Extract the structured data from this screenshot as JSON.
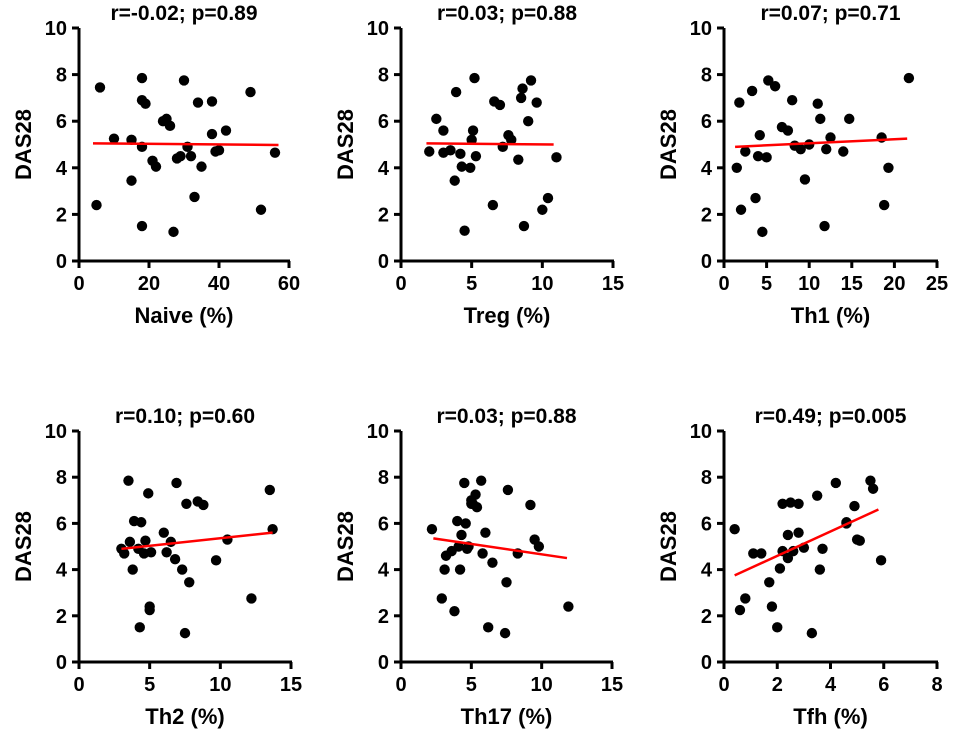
{
  "figure": {
    "point_color": "#000000",
    "fit_line_color": "#ff0000",
    "axis_color": "#000000"
  },
  "chart_data": [
    {
      "type": "scatter",
      "title": "r=-0.02; p=0.89",
      "xlabel": "Naive (%)",
      "ylabel": "DAS28",
      "xlim": [
        0,
        60
      ],
      "ylim": [
        0,
        10
      ],
      "xticks": [
        0,
        20,
        40,
        60
      ],
      "yticks": [
        0,
        2,
        4,
        6,
        8,
        10
      ],
      "fit_line": {
        "x": [
          4,
          57
        ],
        "y": [
          5.05,
          4.98
        ]
      },
      "points": [
        [
          5,
          2.4
        ],
        [
          6,
          7.45
        ],
        [
          10,
          5.25
        ],
        [
          15,
          5.2
        ],
        [
          15,
          3.45
        ],
        [
          18,
          7.85
        ],
        [
          18,
          6.9
        ],
        [
          19,
          6.75
        ],
        [
          18,
          4.9
        ],
        [
          18,
          1.5
        ],
        [
          21,
          4.3
        ],
        [
          22,
          4.05
        ],
        [
          24,
          6.0
        ],
        [
          25,
          6.1
        ],
        [
          26,
          5.8
        ],
        [
          27,
          1.25
        ],
        [
          28,
          4.4
        ],
        [
          29,
          4.5
        ],
        [
          30,
          7.75
        ],
        [
          31,
          4.9
        ],
        [
          32,
          4.5
        ],
        [
          33,
          2.75
        ],
        [
          34,
          6.8
        ],
        [
          35,
          4.05
        ],
        [
          38,
          6.85
        ],
        [
          38,
          5.45
        ],
        [
          39,
          4.7
        ],
        [
          40,
          4.75
        ],
        [
          42,
          5.6
        ],
        [
          49,
          7.25
        ],
        [
          52,
          2.2
        ],
        [
          56,
          4.65
        ]
      ]
    },
    {
      "type": "scatter",
      "title": "r=0.03; p=0.88",
      "xlabel": "Treg (%)",
      "ylabel": "DAS28",
      "xlim": [
        0,
        15
      ],
      "ylim": [
        0,
        10
      ],
      "xticks": [
        0,
        5,
        10,
        15
      ],
      "yticks": [
        0,
        2,
        4,
        6,
        8,
        10
      ],
      "fit_line": {
        "x": [
          1.8,
          10.8
        ],
        "y": [
          5.05,
          5.0
        ]
      },
      "points": [
        [
          2,
          4.7
        ],
        [
          2.5,
          6.1
        ],
        [
          3,
          5.6
        ],
        [
          3,
          4.65
        ],
        [
          3.5,
          4.75
        ],
        [
          3.8,
          3.45
        ],
        [
          3.9,
          7.25
        ],
        [
          4.2,
          4.6
        ],
        [
          4.3,
          4.05
        ],
        [
          4.5,
          1.3
        ],
        [
          4.9,
          4.0
        ],
        [
          5.0,
          5.2
        ],
        [
          5.1,
          5.6
        ],
        [
          5.2,
          7.85
        ],
        [
          5.3,
          4.5
        ],
        [
          6.5,
          2.4
        ],
        [
          6.6,
          6.85
        ],
        [
          7.0,
          6.7
        ],
        [
          7.2,
          4.9
        ],
        [
          7.6,
          5.4
        ],
        [
          7.8,
          5.2
        ],
        [
          8.3,
          4.35
        ],
        [
          8.5,
          7.0
        ],
        [
          8.6,
          7.4
        ],
        [
          8.7,
          1.5
        ],
        [
          9.0,
          6.0
        ],
        [
          9.2,
          7.75
        ],
        [
          9.6,
          6.8
        ],
        [
          10.0,
          2.2
        ],
        [
          10.4,
          2.7
        ],
        [
          11.0,
          4.45
        ]
      ]
    },
    {
      "type": "scatter",
      "title": "r=0.07; p=0.71",
      "xlabel": "Th1 (%)",
      "ylabel": "DAS28",
      "xlim": [
        0,
        25
      ],
      "ylim": [
        0,
        10
      ],
      "xticks": [
        0,
        5,
        10,
        15,
        20,
        25
      ],
      "yticks": [
        0,
        2,
        4,
        6,
        8,
        10
      ],
      "fit_line": {
        "x": [
          1.3,
          21.5
        ],
        "y": [
          4.9,
          5.25
        ]
      },
      "points": [
        [
          1.5,
          4.0
        ],
        [
          1.8,
          6.8
        ],
        [
          2.0,
          2.2
        ],
        [
          2.5,
          4.7
        ],
        [
          3.3,
          7.3
        ],
        [
          3.7,
          2.7
        ],
        [
          4.0,
          4.5
        ],
        [
          4.2,
          5.4
        ],
        [
          4.5,
          1.25
        ],
        [
          5.0,
          4.45
        ],
        [
          5.2,
          7.75
        ],
        [
          6.0,
          7.5
        ],
        [
          6.8,
          5.75
        ],
        [
          7.5,
          5.6
        ],
        [
          8.0,
          6.9
        ],
        [
          8.3,
          4.95
        ],
        [
          9.0,
          4.8
        ],
        [
          9.5,
          3.5
        ],
        [
          10.0,
          5.0
        ],
        [
          11.0,
          6.75
        ],
        [
          11.3,
          6.1
        ],
        [
          11.8,
          1.5
        ],
        [
          12.0,
          4.8
        ],
        [
          12.5,
          5.3
        ],
        [
          14.0,
          4.7
        ],
        [
          14.7,
          6.1
        ],
        [
          18.5,
          5.3
        ],
        [
          18.8,
          2.4
        ],
        [
          19.3,
          4.0
        ],
        [
          21.7,
          7.85
        ]
      ]
    },
    {
      "type": "scatter",
      "title": "r=0.10; p=0.60",
      "xlabel": "Th2 (%)",
      "ylabel": "DAS28",
      "xlim": [
        0,
        15
      ],
      "ylim": [
        0,
        10
      ],
      "xticks": [
        0,
        5,
        10,
        15
      ],
      "yticks": [
        0,
        2,
        4,
        6,
        8,
        10
      ],
      "fit_line": {
        "x": [
          3,
          13.7
        ],
        "y": [
          4.9,
          5.6
        ]
      },
      "points": [
        [
          3.0,
          4.9
        ],
        [
          3.2,
          4.7
        ],
        [
          3.5,
          7.85
        ],
        [
          3.6,
          5.2
        ],
        [
          3.8,
          4.0
        ],
        [
          3.9,
          6.1
        ],
        [
          4.2,
          4.9
        ],
        [
          4.3,
          1.5
        ],
        [
          4.4,
          6.05
        ],
        [
          4.6,
          4.7
        ],
        [
          4.7,
          5.25
        ],
        [
          4.9,
          7.3
        ],
        [
          5.0,
          2.4
        ],
        [
          5.0,
          2.25
        ],
        [
          5.1,
          4.75
        ],
        [
          6.0,
          5.6
        ],
        [
          6.2,
          4.75
        ],
        [
          6.5,
          5.2
        ],
        [
          6.8,
          4.45
        ],
        [
          6.9,
          7.75
        ],
        [
          7.3,
          4.0
        ],
        [
          7.5,
          1.25
        ],
        [
          7.6,
          6.85
        ],
        [
          7.8,
          3.45
        ],
        [
          8.4,
          6.95
        ],
        [
          8.8,
          6.8
        ],
        [
          9.7,
          4.4
        ],
        [
          10.5,
          5.3
        ],
        [
          12.2,
          2.75
        ],
        [
          13.5,
          7.45
        ],
        [
          13.7,
          5.75
        ]
      ]
    },
    {
      "type": "scatter",
      "title": "r=0.03; p=0.88",
      "xlabel": "Th17 (%)",
      "ylabel": "DAS28",
      "xlim": [
        0,
        15
      ],
      "ylim": [
        0,
        10
      ],
      "xticks": [
        0,
        5,
        10,
        15
      ],
      "yticks": [
        0,
        2,
        4,
        6,
        8,
        10
      ],
      "fit_line": {
        "x": [
          2.3,
          11.8
        ],
        "y": [
          5.35,
          4.5
        ]
      },
      "points": [
        [
          2.2,
          5.75
        ],
        [
          2.9,
          2.75
        ],
        [
          3.1,
          4.0
        ],
        [
          3.2,
          4.6
        ],
        [
          3.6,
          4.8
        ],
        [
          3.8,
          2.2
        ],
        [
          4.0,
          6.1
        ],
        [
          4.1,
          5.0
        ],
        [
          4.2,
          4.0
        ],
        [
          4.3,
          5.5
        ],
        [
          4.5,
          7.75
        ],
        [
          4.6,
          6.0
        ],
        [
          4.7,
          4.9
        ],
        [
          4.8,
          5.0
        ],
        [
          5.0,
          6.85
        ],
        [
          5.0,
          7.0
        ],
        [
          5.1,
          6.85
        ],
        [
          5.3,
          7.25
        ],
        [
          5.4,
          6.7
        ],
        [
          5.7,
          7.85
        ],
        [
          5.8,
          4.7
        ],
        [
          6.0,
          5.6
        ],
        [
          6.2,
          1.5
        ],
        [
          6.5,
          4.3
        ],
        [
          7.4,
          1.25
        ],
        [
          7.5,
          3.45
        ],
        [
          7.6,
          7.45
        ],
        [
          8.3,
          4.7
        ],
        [
          9.2,
          6.8
        ],
        [
          9.5,
          5.3
        ],
        [
          9.8,
          5.0
        ],
        [
          11.9,
          2.4
        ]
      ]
    },
    {
      "type": "scatter",
      "title": "r=0.49; p=0.005",
      "xlabel": "Tfh (%)",
      "ylabel": "DAS28",
      "xlim": [
        0,
        8
      ],
      "ylim": [
        0,
        10
      ],
      "xticks": [
        0,
        2,
        4,
        6,
        8
      ],
      "yticks": [
        0,
        2,
        4,
        6,
        8,
        10
      ],
      "fit_line": {
        "x": [
          0.4,
          5.8
        ],
        "y": [
          3.75,
          6.6
        ]
      },
      "points": [
        [
          0.4,
          5.75
        ],
        [
          0.6,
          2.25
        ],
        [
          0.8,
          2.75
        ],
        [
          1.1,
          4.7
        ],
        [
          1.4,
          4.7
        ],
        [
          1.7,
          3.45
        ],
        [
          1.8,
          2.4
        ],
        [
          2.0,
          1.5
        ],
        [
          2.1,
          4.05
        ],
        [
          2.2,
          6.85
        ],
        [
          2.2,
          4.8
        ],
        [
          2.4,
          4.5
        ],
        [
          2.4,
          5.5
        ],
        [
          2.5,
          6.9
        ],
        [
          2.6,
          4.8
        ],
        [
          2.8,
          5.6
        ],
        [
          2.8,
          6.85
        ],
        [
          3.0,
          4.95
        ],
        [
          3.3,
          1.25
        ],
        [
          3.5,
          7.2
        ],
        [
          3.6,
          4.0
        ],
        [
          3.7,
          4.9
        ],
        [
          4.2,
          7.75
        ],
        [
          4.6,
          6.05
        ],
        [
          4.6,
          6.0
        ],
        [
          4.9,
          6.75
        ],
        [
          5.0,
          5.3
        ],
        [
          5.1,
          5.25
        ],
        [
          5.5,
          7.85
        ],
        [
          5.6,
          7.5
        ],
        [
          5.9,
          4.4
        ]
      ]
    }
  ]
}
